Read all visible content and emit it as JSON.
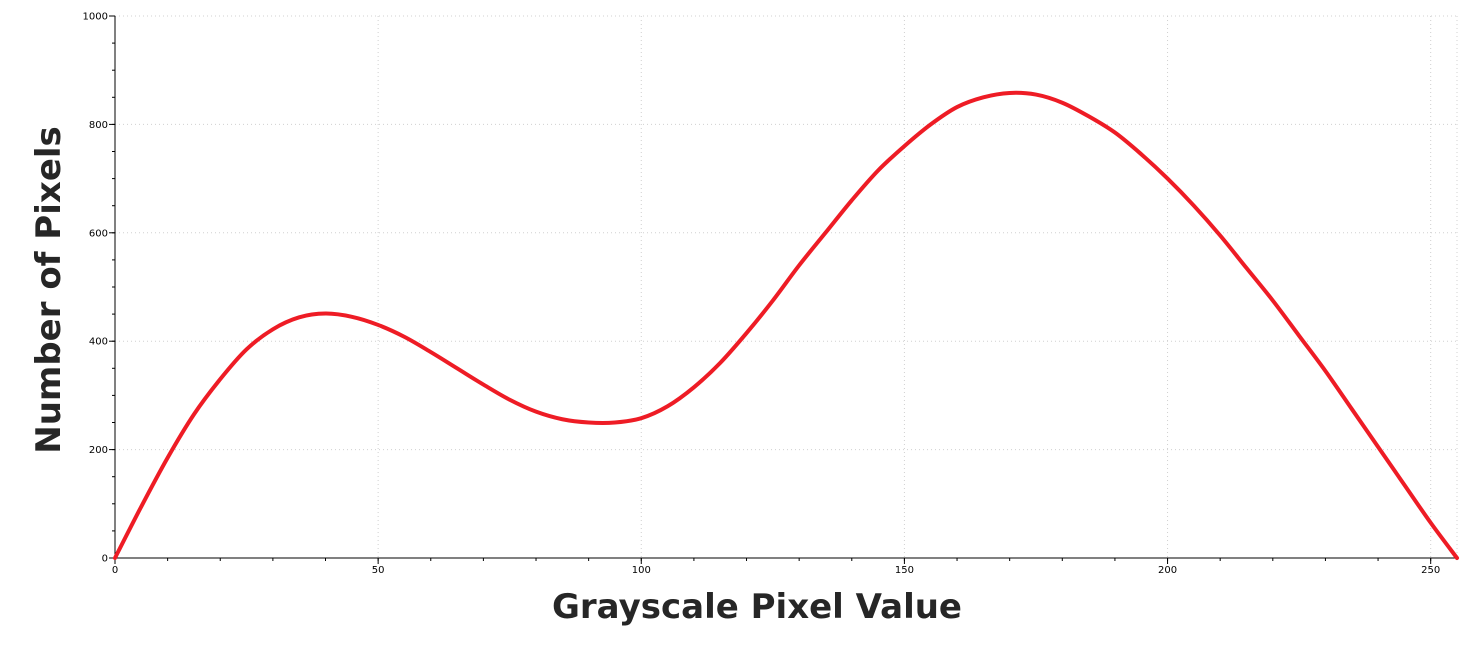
{
  "chart_data": {
    "type": "line",
    "xlabel": "Grayscale Pixel Value",
    "ylabel": "Number of Pixels",
    "xlim": [
      0,
      255
    ],
    "ylim": [
      0,
      1000
    ],
    "x_ticks": [
      0,
      50,
      100,
      150,
      200,
      250
    ],
    "y_ticks": [
      0,
      200,
      400,
      600,
      800,
      1000
    ],
    "x_minor_step": 10,
    "y_minor_step": 50,
    "grid": true,
    "series": [
      {
        "color": "#ee1c25",
        "x": [
          0,
          5,
          10,
          15,
          20,
          25,
          30,
          35,
          40,
          45,
          50,
          55,
          60,
          65,
          70,
          75,
          80,
          85,
          90,
          95,
          100,
          105,
          110,
          115,
          120,
          125,
          130,
          135,
          140,
          145,
          150,
          155,
          160,
          165,
          170,
          175,
          180,
          185,
          190,
          195,
          200,
          205,
          210,
          215,
          220,
          225,
          230,
          235,
          240,
          245,
          250,
          255
        ],
        "y": [
          0,
          95,
          185,
          265,
          330,
          385,
          422,
          444,
          451,
          445,
          430,
          408,
          380,
          350,
          320,
          292,
          270,
          256,
          250,
          250,
          258,
          280,
          315,
          360,
          415,
          475,
          540,
          600,
          660,
          715,
          760,
          800,
          832,
          850,
          858,
          855,
          840,
          815,
          785,
          745,
          700,
          650,
          595,
          535,
          475,
          410,
          345,
          275,
          205,
          135,
          65,
          0
        ]
      }
    ]
  }
}
